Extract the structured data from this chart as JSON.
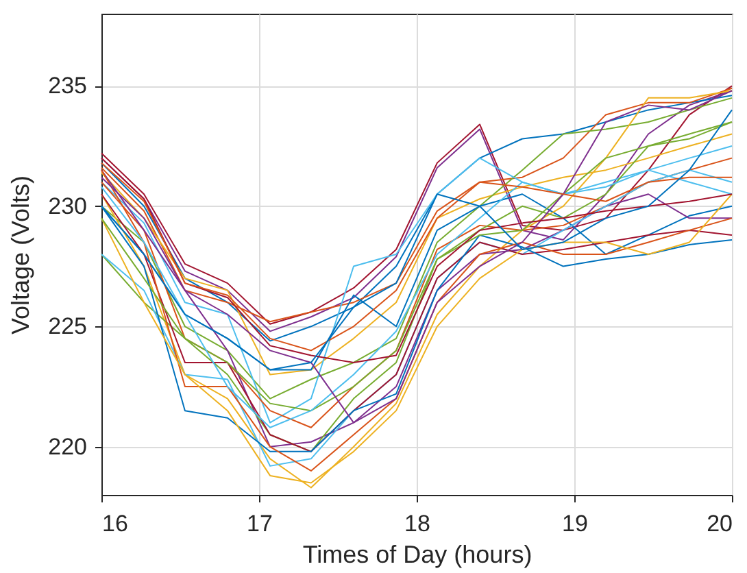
{
  "chart_data": {
    "type": "line",
    "xlabel": "Times of Day (hours)",
    "ylabel": "Voltage (Volts)",
    "x": [
      16,
      16.27,
      16.53,
      16.8,
      17.07,
      17.33,
      17.6,
      17.87,
      18.13,
      18.4,
      18.67,
      18.93,
      19.2,
      19.47,
      19.73,
      20
    ],
    "xlim": [
      16,
      20
    ],
    "xticks": [
      16,
      17,
      18,
      19,
      20
    ],
    "ylim": [
      218,
      238
    ],
    "yticks": [
      220,
      225,
      230,
      235
    ],
    "grid": true,
    "series": [
      {
        "color": "#a2142f",
        "values": [
          232.2,
          230.5,
          227.6,
          226.8,
          225.1,
          225.6,
          226.6,
          228.2,
          231.8,
          233.4,
          229.2,
          229.0,
          229.5,
          231.5,
          233.8,
          235.0
        ]
      },
      {
        "color": "#7e2f8e",
        "values": [
          232.0,
          230.3,
          227.3,
          226.5,
          224.8,
          225.4,
          226.2,
          227.9,
          231.6,
          233.2,
          229.0,
          228.6,
          230.5,
          233.0,
          234.2,
          234.8
        ]
      },
      {
        "color": "#0072bd",
        "values": [
          231.8,
          230.0,
          227.0,
          226.0,
          224.4,
          225.0,
          225.8,
          227.5,
          230.5,
          232.0,
          232.8,
          233.0,
          233.5,
          234.0,
          234.3,
          234.6
        ]
      },
      {
        "color": "#d95319",
        "values": [
          231.6,
          229.8,
          226.5,
          226.0,
          225.2,
          225.6,
          226.0,
          226.8,
          229.8,
          231.0,
          231.2,
          232.0,
          233.8,
          234.3,
          234.3,
          234.9
        ]
      },
      {
        "color": "#edb120",
        "values": [
          231.4,
          229.5,
          227.0,
          226.5,
          223.0,
          223.2,
          224.5,
          226.0,
          229.5,
          230.3,
          230.8,
          231.2,
          231.5,
          232.0,
          232.5,
          233.0
        ]
      },
      {
        "color": "#77ac30",
        "values": [
          230.0,
          228.5,
          225.0,
          224.0,
          222.0,
          222.8,
          223.5,
          224.5,
          228.5,
          230.0,
          231.5,
          233.0,
          233.2,
          233.5,
          234.0,
          234.5
        ]
      },
      {
        "color": "#4dbeee",
        "values": [
          231.0,
          229.3,
          226.0,
          225.5,
          221.0,
          222.0,
          227.5,
          228.0,
          230.5,
          232.0,
          231.0,
          230.5,
          231.0,
          231.5,
          232.0,
          232.5
        ]
      },
      {
        "color": "#0072bd",
        "values": [
          230.0,
          228.0,
          225.5,
          224.5,
          223.2,
          223.2,
          226.3,
          225.0,
          229.0,
          230.0,
          230.5,
          229.5,
          228.0,
          228.8,
          229.6,
          230.0
        ]
      },
      {
        "color": "#d95319",
        "values": [
          231.0,
          229.0,
          224.5,
          223.5,
          221.5,
          220.8,
          222.5,
          224.0,
          228.2,
          229.2,
          229.0,
          229.2,
          230.0,
          231.0,
          231.5,
          232.0
        ]
      },
      {
        "color": "#edb120",
        "values": [
          230.5,
          227.5,
          223.0,
          222.0,
          219.5,
          218.3,
          220.0,
          221.8,
          225.5,
          227.5,
          229.0,
          230.0,
          232.0,
          234.5,
          234.5,
          234.8
        ]
      },
      {
        "color": "#7e2f8e",
        "values": [
          231.5,
          229.0,
          226.5,
          224.0,
          220.0,
          220.2,
          221.0,
          222.5,
          226.5,
          228.0,
          228.2,
          229.0,
          230.0,
          230.5,
          229.5,
          229.5
        ]
      },
      {
        "color": "#77ac30",
        "values": [
          228.0,
          226.0,
          224.5,
          223.0,
          220.5,
          219.8,
          222.0,
          223.5,
          227.8,
          229.0,
          230.0,
          229.5,
          230.5,
          232.5,
          233.0,
          233.5
        ]
      },
      {
        "color": "#4dbeee",
        "values": [
          228.0,
          226.5,
          223.0,
          222.8,
          219.2,
          219.5,
          221.5,
          223.0,
          227.0,
          228.5,
          228.0,
          229.0,
          230.0,
          231.0,
          231.5,
          231.0
        ]
      },
      {
        "color": "#a2142f",
        "values": [
          230.5,
          228.0,
          223.5,
          223.5,
          220.5,
          219.8,
          221.5,
          223.0,
          227.0,
          228.5,
          228.0,
          228.2,
          228.5,
          228.8,
          229.0,
          228.8
        ]
      },
      {
        "color": "#0072bd",
        "values": [
          230.0,
          227.5,
          221.5,
          221.2,
          219.8,
          219.8,
          221.5,
          222.2,
          226.5,
          228.8,
          228.3,
          227.5,
          227.8,
          228.0,
          228.4,
          228.6
        ]
      },
      {
        "color": "#d95319",
        "values": [
          231.5,
          228.5,
          222.5,
          222.5,
          220.0,
          219.0,
          220.5,
          222.0,
          226.0,
          228.0,
          228.5,
          228.0,
          228.0,
          228.5,
          229.0,
          229.5
        ]
      },
      {
        "color": "#edb120",
        "values": [
          229.5,
          226.0,
          223.0,
          221.5,
          218.8,
          218.5,
          219.8,
          221.5,
          225.0,
          227.0,
          228.2,
          228.5,
          228.5,
          228.0,
          228.5,
          230.5
        ]
      },
      {
        "color": "#77ac30",
        "values": [
          229.5,
          227.0,
          224.5,
          223.5,
          221.8,
          221.5,
          222.5,
          224.0,
          227.8,
          228.8,
          229.0,
          230.5,
          232.0,
          232.5,
          232.8,
          233.5
        ]
      },
      {
        "color": "#4dbeee",
        "values": [
          230.8,
          228.5,
          225.5,
          222.5,
          220.8,
          221.5,
          223.0,
          224.8,
          228.0,
          229.5,
          231.0,
          230.5,
          230.8,
          231.5,
          231.0,
          230.5
        ]
      },
      {
        "color": "#7e2f8e",
        "values": [
          231.2,
          229.5,
          226.5,
          225.5,
          224.0,
          223.5,
          221.0,
          222.0,
          226.0,
          227.5,
          228.5,
          230.5,
          233.5,
          234.2,
          234.0,
          234.8
        ]
      },
      {
        "color": "#a2142f",
        "values": [
          232.0,
          230.3,
          226.8,
          226.2,
          224.2,
          223.8,
          223.5,
          223.8,
          227.5,
          229.0,
          229.3,
          229.5,
          229.8,
          230.0,
          230.2,
          230.5
        ]
      },
      {
        "color": "#d95319",
        "values": [
          231.8,
          230.2,
          226.8,
          226.3,
          224.5,
          224.0,
          225.0,
          226.5,
          229.5,
          231.0,
          230.8,
          230.5,
          230.2,
          231.0,
          231.2,
          231.2
        ]
      },
      {
        "color": "#0072bd",
        "values": [
          230.0,
          228.0,
          225.5,
          224.5,
          223.2,
          223.5,
          225.8,
          226.8,
          230.5,
          230.0,
          228.2,
          228.5,
          229.5,
          230.0,
          231.5,
          234.0
        ]
      }
    ]
  }
}
